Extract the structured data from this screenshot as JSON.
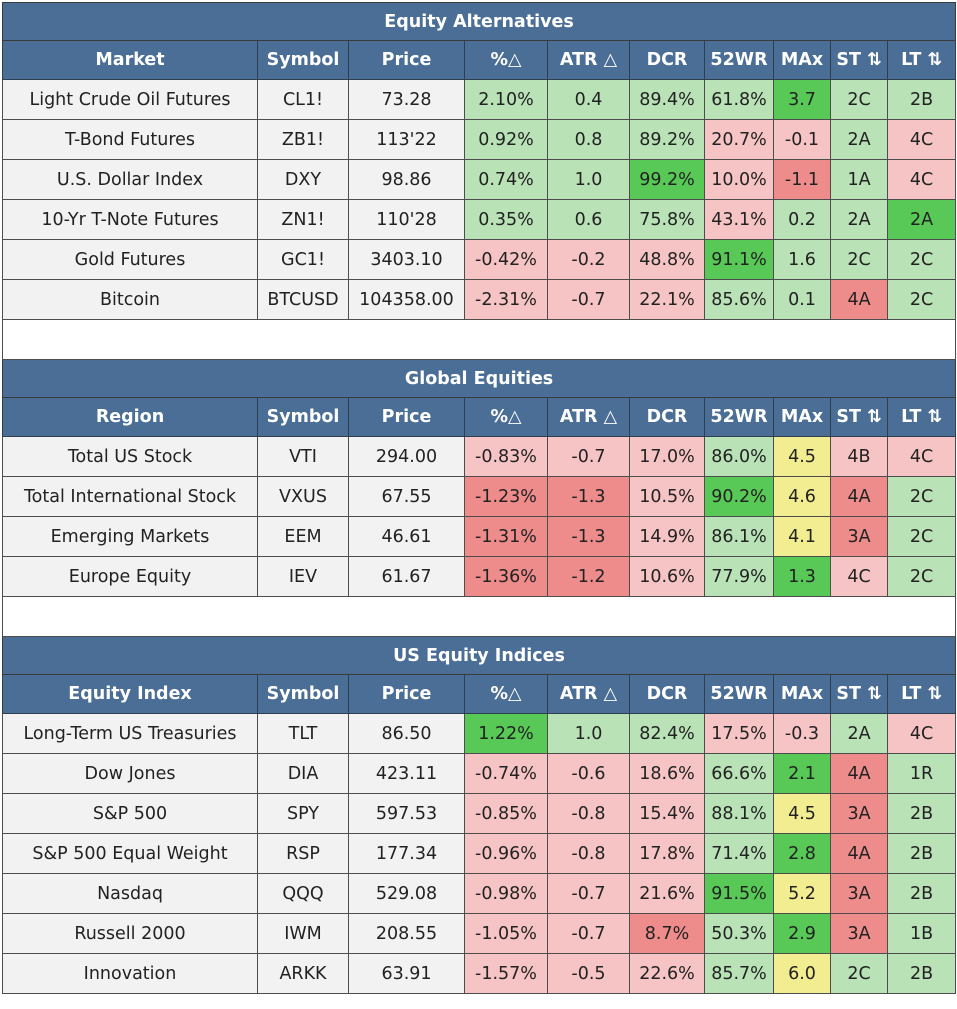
{
  "sections": [
    {
      "title": "Equity Alternatives",
      "headers": [
        "Market",
        "Symbol",
        "Price",
        "%△",
        "ATR △",
        "DCR",
        "52WR",
        "MAx",
        "ST ⇅",
        "LT ⇅"
      ],
      "rows": [
        {
          "cells": [
            "Light Crude Oil Futures",
            "CL1!",
            "73.28",
            "2.10%",
            "0.4",
            "89.4%",
            "61.8%",
            "3.7",
            "2C",
            "2B"
          ],
          "colors": [
            "w",
            "w",
            "w",
            "lg",
            "lg",
            "lg",
            "lg",
            "g",
            "lg",
            "lg"
          ]
        },
        {
          "cells": [
            "T-Bond Futures",
            "ZB1!",
            "113'22",
            "0.92%",
            "0.8",
            "89.2%",
            "20.7%",
            "-0.1",
            "2A",
            "4C"
          ],
          "colors": [
            "w",
            "w",
            "w",
            "lg",
            "lg",
            "lg",
            "lr",
            "lr",
            "lg",
            "lr"
          ]
        },
        {
          "cells": [
            "U.S. Dollar Index",
            "DXY",
            "98.86",
            "0.74%",
            "1.0",
            "99.2%",
            "10.0%",
            "-1.1",
            "1A",
            "4C"
          ],
          "colors": [
            "w",
            "w",
            "w",
            "lg",
            "lg",
            "g",
            "lr",
            "r",
            "lg",
            "lr"
          ]
        },
        {
          "cells": [
            "10-Yr T-Note Futures",
            "ZN1!",
            "110'28",
            "0.35%",
            "0.6",
            "75.8%",
            "43.1%",
            "0.2",
            "2A",
            "2A"
          ],
          "colors": [
            "w",
            "w",
            "w",
            "lg",
            "lg",
            "lg",
            "lr",
            "lg",
            "lg",
            "g"
          ]
        },
        {
          "cells": [
            "Gold Futures",
            "GC1!",
            "3403.10",
            "-0.42%",
            "-0.2",
            "48.8%",
            "91.1%",
            "1.6",
            "2C",
            "2C"
          ],
          "colors": [
            "w",
            "w",
            "w",
            "lr",
            "lr",
            "lr",
            "g",
            "lg",
            "lg",
            "lg"
          ]
        },
        {
          "cells": [
            "Bitcoin",
            "BTCUSD",
            "104358.00",
            "-2.31%",
            "-0.7",
            "22.1%",
            "85.6%",
            "0.1",
            "4A",
            "2C"
          ],
          "colors": [
            "w",
            "w",
            "w",
            "lr",
            "lr",
            "lr",
            "lg",
            "lg",
            "r",
            "lg"
          ]
        }
      ]
    },
    {
      "title": "Global Equities",
      "headers": [
        "Region",
        "Symbol",
        "Price",
        "%△",
        "ATR △",
        "DCR",
        "52WR",
        "MAx",
        "ST ⇅",
        "LT ⇅"
      ],
      "rows": [
        {
          "cells": [
            "Total US Stock",
            "VTI",
            "294.00",
            "-0.83%",
            "-0.7",
            "17.0%",
            "86.0%",
            "4.5",
            "4B",
            "4C"
          ],
          "colors": [
            "w",
            "w",
            "w",
            "lr",
            "lr",
            "lr",
            "lg",
            "y",
            "lr",
            "lr"
          ]
        },
        {
          "cells": [
            "Total International Stock",
            "VXUS",
            "67.55",
            "-1.23%",
            "-1.3",
            "10.5%",
            "90.2%",
            "4.6",
            "4A",
            "2C"
          ],
          "colors": [
            "w",
            "w",
            "w",
            "r",
            "r",
            "lr",
            "g",
            "y",
            "r",
            "lg"
          ]
        },
        {
          "cells": [
            "Emerging Markets",
            "EEM",
            "46.61",
            "-1.31%",
            "-1.3",
            "14.9%",
            "86.1%",
            "4.1",
            "3A",
            "2C"
          ],
          "colors": [
            "w",
            "w",
            "w",
            "r",
            "r",
            "lr",
            "lg",
            "y",
            "r",
            "lg"
          ]
        },
        {
          "cells": [
            "Europe Equity",
            "IEV",
            "61.67",
            "-1.36%",
            "-1.2",
            "10.6%",
            "77.9%",
            "1.3",
            "4C",
            "2C"
          ],
          "colors": [
            "w",
            "w",
            "w",
            "r",
            "r",
            "lr",
            "lg",
            "g",
            "lr",
            "lg"
          ]
        }
      ]
    },
    {
      "title": "US Equity Indices",
      "headers": [
        "Equity Index",
        "Symbol",
        "Price",
        "%△",
        "ATR △",
        "DCR",
        "52WR",
        "MAx",
        "ST ⇅",
        "LT ⇅"
      ],
      "rows": [
        {
          "cells": [
            "Long-Term US Treasuries",
            "TLT",
            "86.50",
            "1.22%",
            "1.0",
            "82.4%",
            "17.5%",
            "-0.3",
            "2A",
            "4C"
          ],
          "colors": [
            "w",
            "w",
            "w",
            "g",
            "lg",
            "lg",
            "lr",
            "lr",
            "lg",
            "lr"
          ]
        },
        {
          "cells": [
            "Dow Jones",
            "DIA",
            "423.11",
            "-0.74%",
            "-0.6",
            "18.6%",
            "66.6%",
            "2.1",
            "4A",
            "1R"
          ],
          "colors": [
            "w",
            "w",
            "w",
            "lr",
            "lr",
            "lr",
            "lg",
            "g",
            "r",
            "lg"
          ]
        },
        {
          "cells": [
            "S&P 500",
            "SPY",
            "597.53",
            "-0.85%",
            "-0.8",
            "15.4%",
            "88.1%",
            "4.5",
            "3A",
            "2B"
          ],
          "colors": [
            "w",
            "w",
            "w",
            "lr",
            "lr",
            "lr",
            "lg",
            "y",
            "r",
            "lg"
          ]
        },
        {
          "cells": [
            "S&P 500 Equal Weight",
            "RSP",
            "177.34",
            "-0.96%",
            "-0.8",
            "17.8%",
            "71.4%",
            "2.8",
            "4A",
            "2B"
          ],
          "colors": [
            "w",
            "w",
            "w",
            "lr",
            "lr",
            "lr",
            "lg",
            "g",
            "r",
            "lg"
          ]
        },
        {
          "cells": [
            "Nasdaq",
            "QQQ",
            "529.08",
            "-0.98%",
            "-0.7",
            "21.6%",
            "91.5%",
            "5.2",
            "3A",
            "2B"
          ],
          "colors": [
            "w",
            "w",
            "w",
            "lr",
            "lr",
            "lr",
            "g",
            "y",
            "r",
            "lg"
          ]
        },
        {
          "cells": [
            "Russell 2000",
            "IWM",
            "208.55",
            "-1.05%",
            "-0.7",
            "8.7%",
            "50.3%",
            "2.9",
            "3A",
            "1B"
          ],
          "colors": [
            "w",
            "w",
            "w",
            "lr",
            "lr",
            "r",
            "lg",
            "g",
            "r",
            "lg"
          ]
        },
        {
          "cells": [
            "Innovation",
            "ARKK",
            "63.91",
            "-1.57%",
            "-0.5",
            "22.6%",
            "85.7%",
            "6.0",
            "2C",
            "2B"
          ],
          "colors": [
            "w",
            "w",
            "w",
            "lr",
            "lr",
            "lr",
            "lg",
            "y",
            "lg",
            "lg"
          ]
        }
      ]
    }
  ],
  "color_legend": {
    "w": "#f2f2f2",
    "lg": "#b9e2b7",
    "g": "#58c957",
    "lr": "#f6c4c4",
    "r": "#ee8c8c",
    "y": "#f2ed90",
    "header_bg": "#4a6e96"
  }
}
